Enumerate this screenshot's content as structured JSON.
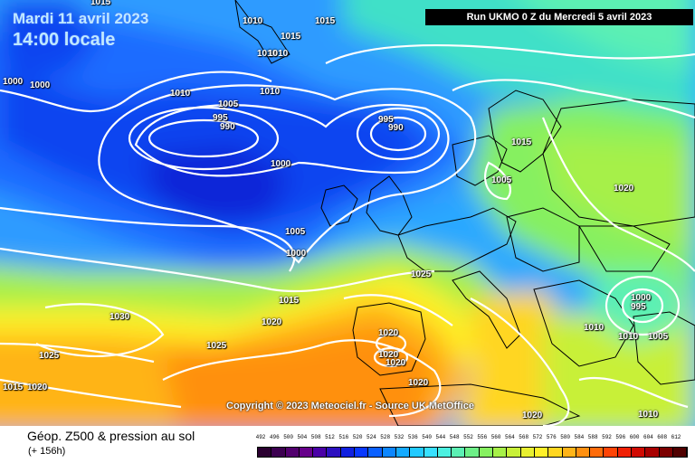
{
  "header": {
    "date_line_1": "Mardi 11 avril 2023",
    "date_line_2": "14:00 locale",
    "run_info": "Run UKMO 0 Z du Mercredi 5 avril 2023"
  },
  "copyright": "Copyright © 2023 Meteociel.fr - Source UK MetOffice",
  "footer": {
    "title": "Géop. Z500 & pression au sol",
    "subtitle": "(+ 156h)"
  },
  "legend": {
    "ticks": [
      "492",
      "496",
      "500",
      "504",
      "508",
      "512",
      "516",
      "520",
      "524",
      "528",
      "532",
      "536",
      "540",
      "544",
      "548",
      "552",
      "556",
      "560",
      "564",
      "568",
      "572",
      "576",
      "580",
      "584",
      "588",
      "592",
      "596",
      "600",
      "604",
      "608",
      "612"
    ],
    "colors": [
      "#2a0030",
      "#3c0050",
      "#52006e",
      "#66008a",
      "#4a00a6",
      "#2c10c0",
      "#1020e0",
      "#0838ff",
      "#0a60ff",
      "#0c86ff",
      "#14aaff",
      "#22caff",
      "#38e0ff",
      "#4cf0e0",
      "#5cf0b4",
      "#6ef088",
      "#86f060",
      "#a6f048",
      "#c8f038",
      "#e8f030",
      "#fff028",
      "#ffd620",
      "#ffb418",
      "#ff9010",
      "#ff6c0a",
      "#ff4406",
      "#f02004",
      "#d00a02",
      "#a80000",
      "#7c0000",
      "#500000"
    ]
  },
  "isobar_labels": [
    "1015",
    "1010",
    "1015",
    "1015",
    "1010",
    "1010",
    "1000",
    "1000",
    "1010",
    "1005",
    "1010",
    "995",
    "990",
    "995",
    "990",
    "1000",
    "1015",
    "1005",
    "1020",
    "1005",
    "1000",
    "1025",
    "1015",
    "1030",
    "1020",
    "1025",
    "1025",
    "1015",
    "1020",
    "1020",
    "1020",
    "1020",
    "1020",
    "1000",
    "995",
    "1010",
    "1010",
    "1005",
    "1020",
    "1010"
  ]
}
